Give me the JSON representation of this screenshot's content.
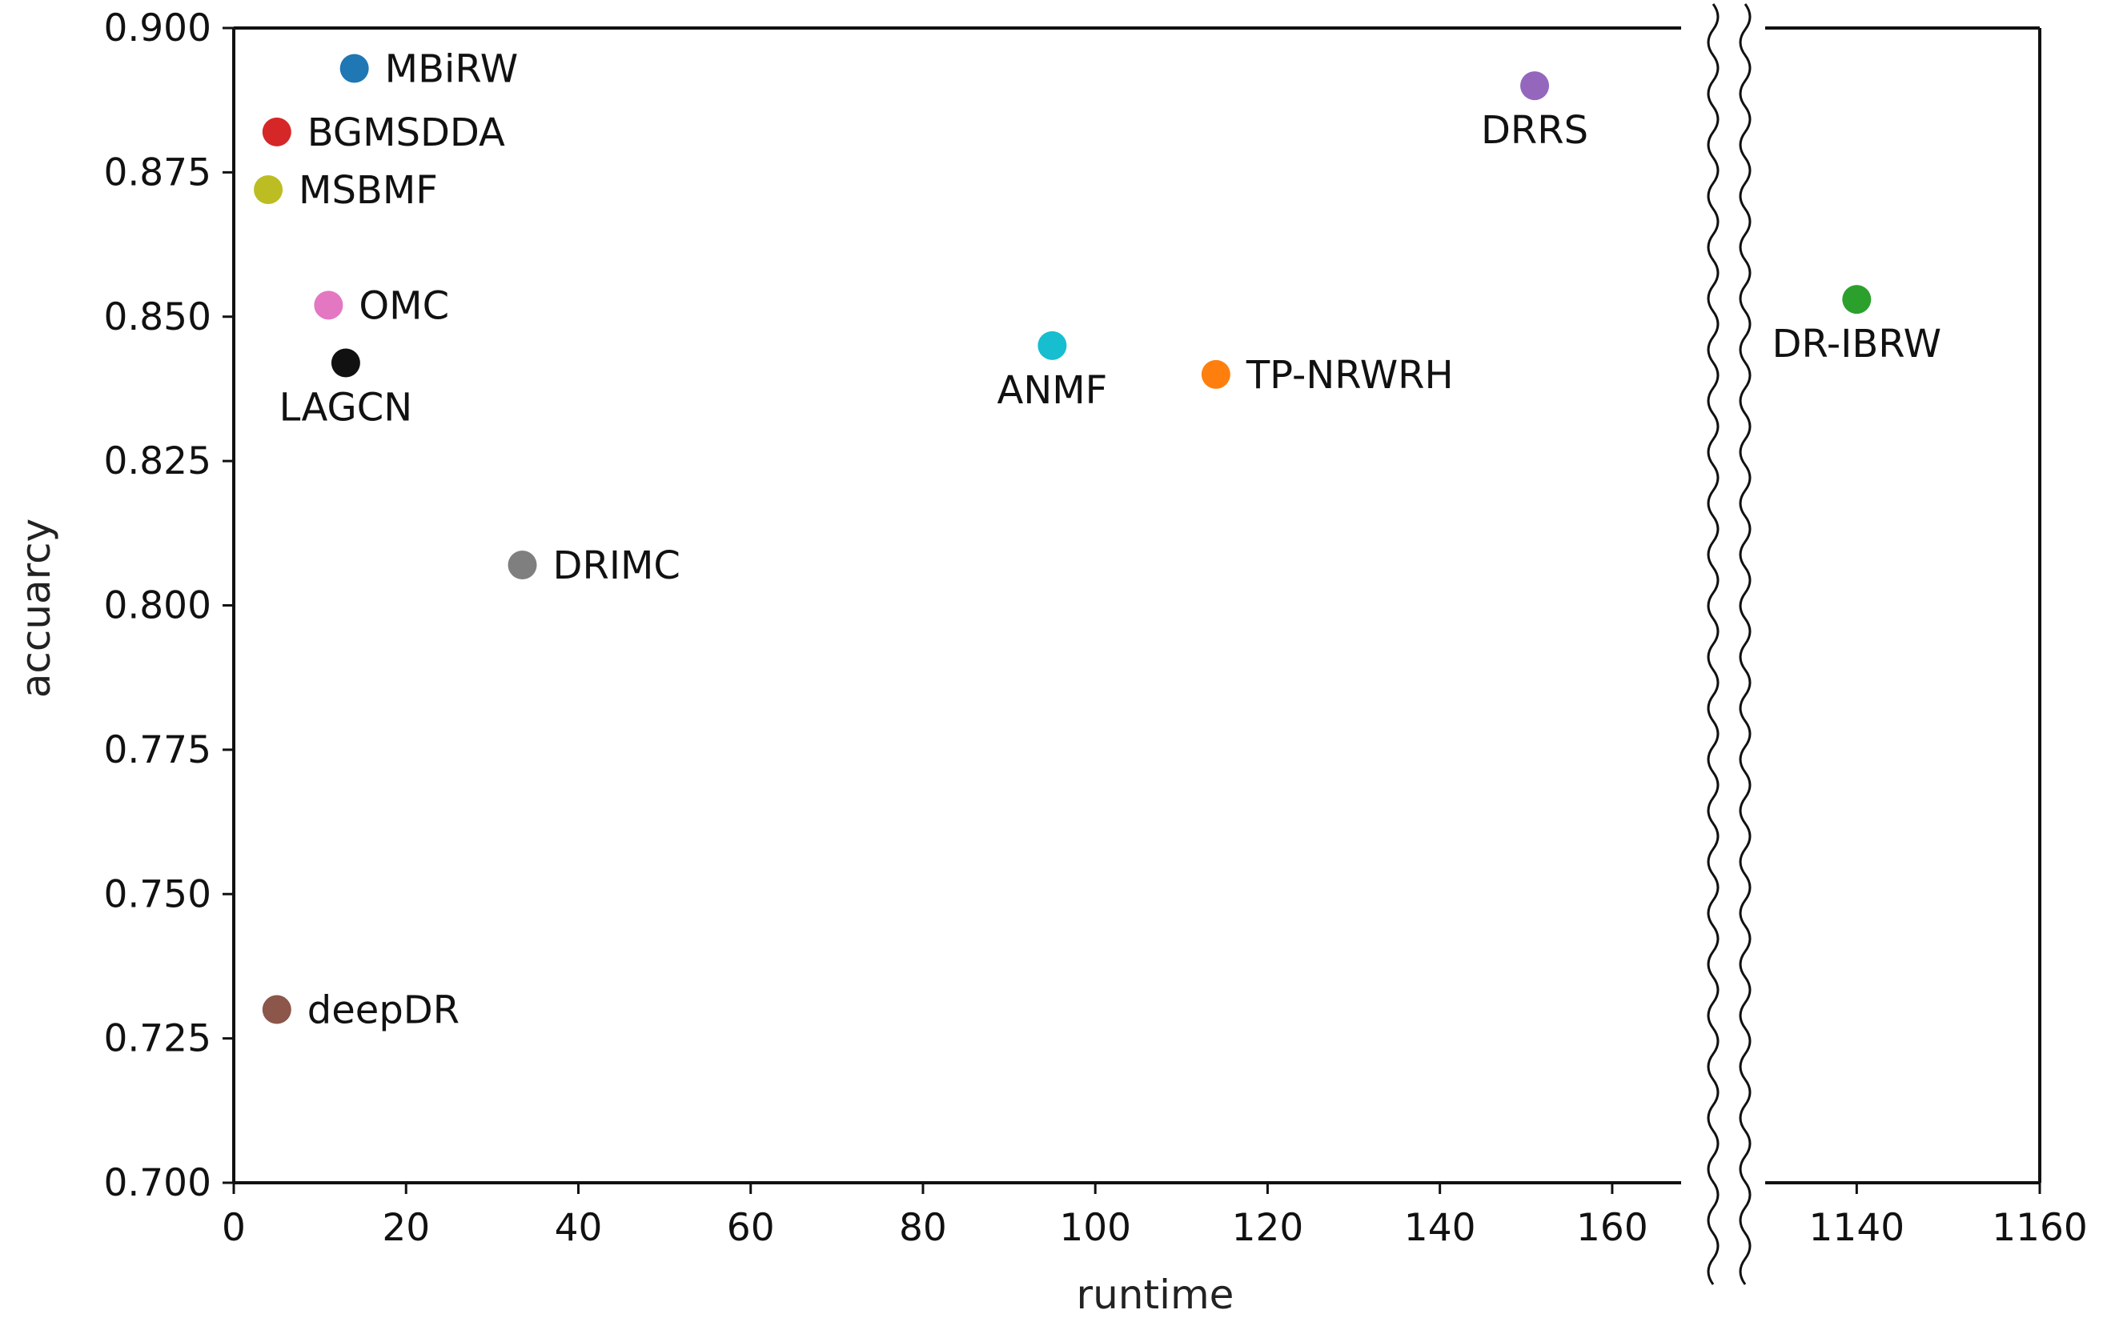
{
  "chart_data": {
    "type": "scatter",
    "title": "",
    "xlabel": "runtime",
    "ylabel": "accuarcy",
    "ylim": [
      0.7,
      0.9
    ],
    "y_ticks": [
      "0.700",
      "0.725",
      "0.750",
      "0.775",
      "0.800",
      "0.825",
      "0.850",
      "0.875",
      "0.900"
    ],
    "x_segments": [
      {
        "xlim": [
          0,
          168
        ],
        "ticks": [
          "0",
          "20",
          "40",
          "60",
          "80",
          "100",
          "120",
          "140",
          "160"
        ]
      },
      {
        "xlim": [
          1130,
          1160
        ],
        "ticks": [
          "1140",
          "1160"
        ]
      }
    ],
    "axis_break": true,
    "points": [
      {
        "label": "MBiRW",
        "x": 14,
        "y": 0.893,
        "color": "#1f77b4",
        "label_pos": "right"
      },
      {
        "label": "BGMSDDA",
        "x": 5,
        "y": 0.882,
        "color": "#d62728",
        "label_pos": "right"
      },
      {
        "label": "MSBMF",
        "x": 4,
        "y": 0.872,
        "color": "#bcbd22",
        "label_pos": "right"
      },
      {
        "label": "OMC",
        "x": 11,
        "y": 0.852,
        "color": "#e377c2",
        "label_pos": "right"
      },
      {
        "label": "LAGCN",
        "x": 13,
        "y": 0.842,
        "color": "#111111",
        "label_pos": "below"
      },
      {
        "label": "DRIMC",
        "x": 33.5,
        "y": 0.807,
        "color": "#7f7f7f",
        "label_pos": "right"
      },
      {
        "label": "deepDR",
        "x": 5,
        "y": 0.73,
        "color": "#8c564b",
        "label_pos": "right"
      },
      {
        "label": "ANMF",
        "x": 95,
        "y": 0.845,
        "color": "#17becf",
        "label_pos": "below"
      },
      {
        "label": "TP-NRWRH",
        "x": 114,
        "y": 0.84,
        "color": "#ff7f0e",
        "label_pos": "right"
      },
      {
        "label": "DRRS",
        "x": 151,
        "y": 0.89,
        "color": "#9467bd",
        "label_pos": "below"
      },
      {
        "label": "DR-IBRW",
        "x": 1140,
        "y": 0.853,
        "color": "#2ca02c",
        "label_pos": "below"
      }
    ]
  }
}
